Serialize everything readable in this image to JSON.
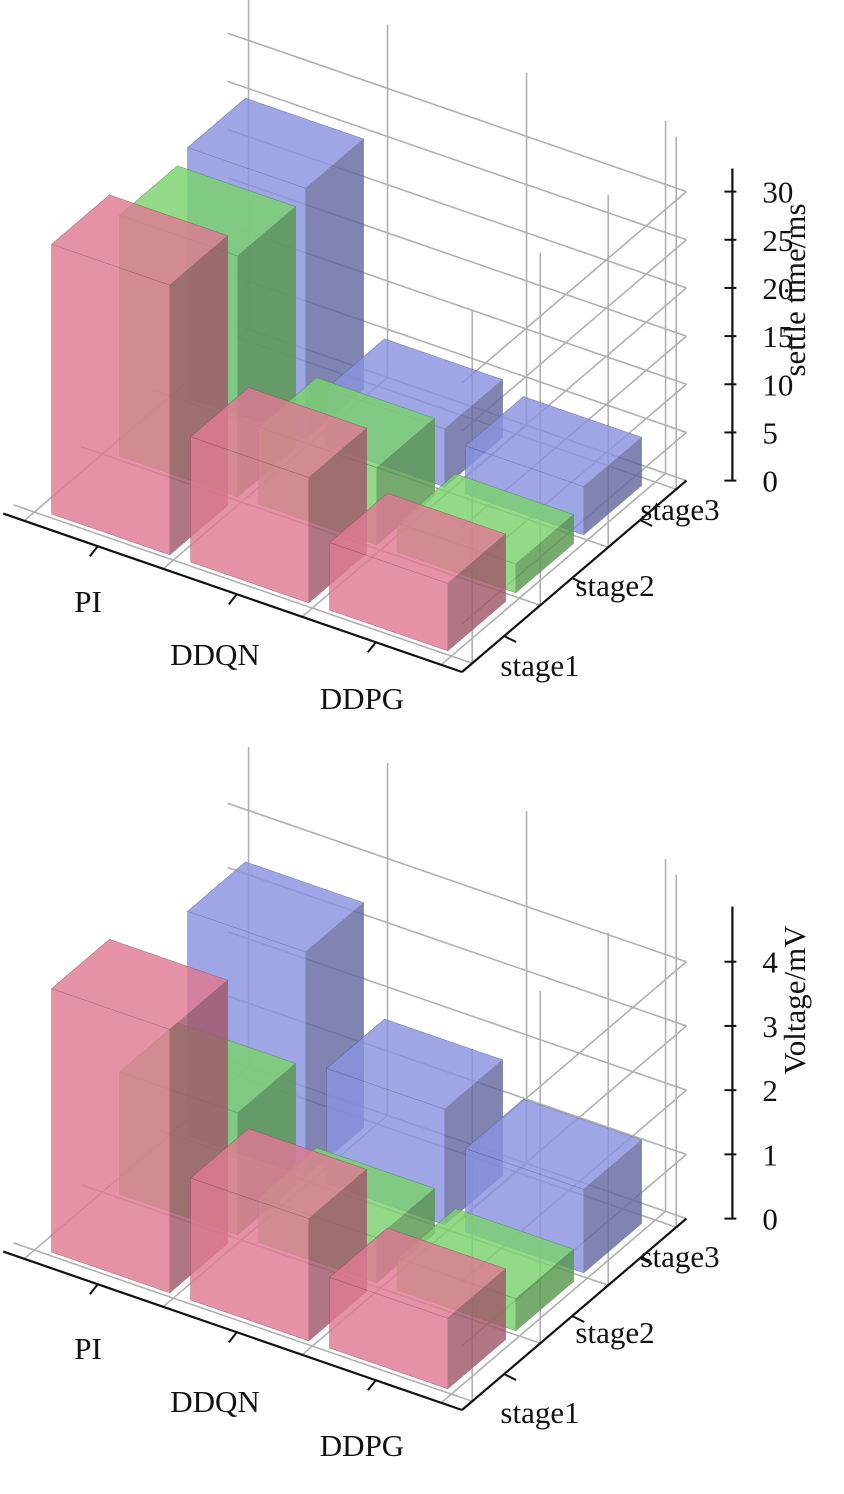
{
  "colors": {
    "stage1": "#e07a93",
    "stage2": "#7bd36e",
    "stage3": "#8a93e0",
    "grid": "#b0b0b0",
    "axis": "#111111"
  },
  "chart_data": [
    {
      "type": "bar3d",
      "zlabel": "settle time/ms",
      "x_categories": [
        "PI",
        "DDQN",
        "DDPG"
      ],
      "y_categories": [
        "stage1",
        "stage2",
        "stage3"
      ],
      "zlim": [
        0,
        30
      ],
      "zticks": [
        "0",
        "5",
        "10",
        "15",
        "20",
        "25",
        "30"
      ],
      "series": [
        {
          "name": "stage1",
          "values": [
            28,
            13,
            7
          ]
        },
        {
          "name": "stage2",
          "values": [
            25,
            8,
            3
          ]
        },
        {
          "name": "stage3",
          "values": [
            26,
            6,
            5
          ]
        }
      ],
      "grid": true
    },
    {
      "type": "bar3d",
      "zlabel": "Voltage/mV",
      "x_categories": [
        "PI",
        "DDQN",
        "DDPG"
      ],
      "y_categories": [
        "stage1",
        "stage2",
        "stage3"
      ],
      "zlim": [
        0,
        4.5
      ],
      "zticks": [
        "0",
        "1",
        "2",
        "3",
        "4"
      ],
      "series": [
        {
          "name": "stage1",
          "values": [
            4.1,
            1.9,
            1.1
          ]
        },
        {
          "name": "stage2",
          "values": [
            1.9,
            0.7,
            0.5
          ]
        },
        {
          "name": "stage3",
          "values": [
            3.5,
            1.8,
            1.3
          ]
        }
      ],
      "grid": true
    }
  ]
}
